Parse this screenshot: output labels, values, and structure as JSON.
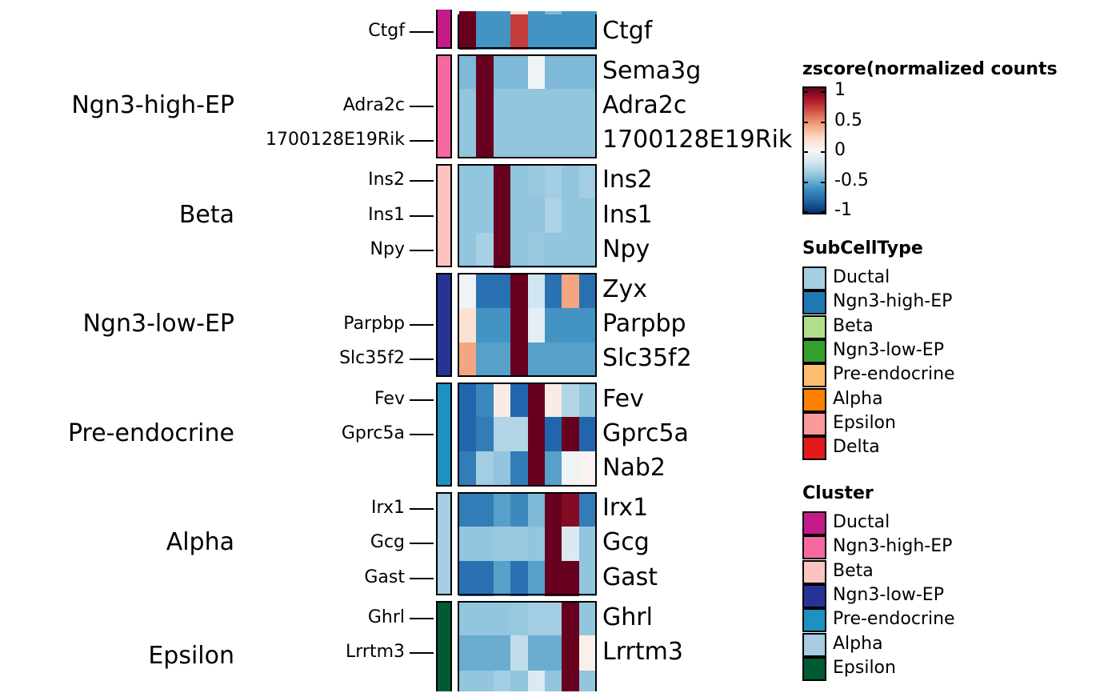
{
  "chart_data": {
    "type": "heatmap",
    "title": "",
    "columns_count": 8,
    "colorscale": {
      "title": "zscore(normalized counts",
      "range": [
        -1,
        1
      ],
      "ticks": [
        "1",
        "0.5",
        "0",
        "-0.5",
        "-1"
      ],
      "tick_values": [
        1,
        0.5,
        0,
        -0.5,
        -1
      ],
      "palette": "RdBu (reversed)",
      "stops": [
        "#053061",
        "#2166ac",
        "#4393c3",
        "#92c5de",
        "#d1e5f0",
        "#f7f7f7",
        "#fddbc7",
        "#f4a582",
        "#d6604d",
        "#b2182b",
        "#67001f"
      ]
    },
    "row_groups": [
      {
        "name": "Ductal",
        "label": "",
        "cluster_color": "#C51B8A",
        "rows": [
          {
            "gene": "Ctgf",
            "left_label": "Ctgf",
            "values": [
              1,
              -0.6,
              -0.6,
              0.7,
              -0.6,
              -0.6,
              -0.6,
              -0.6
            ]
          }
        ]
      },
      {
        "name": "Ngn3-high-EP",
        "label": "Ngn3-high-EP",
        "cluster_color": "#F768A1",
        "rows": [
          {
            "gene": "Sema3g",
            "left_label": "",
            "values": [
              -0.45,
              1,
              -0.45,
              -0.45,
              -0.05,
              -0.45,
              -0.45,
              -0.45
            ]
          },
          {
            "gene": "Adra2c",
            "left_label": "Adra2c",
            "values": [
              -0.4,
              1,
              -0.4,
              -0.4,
              -0.4,
              -0.4,
              -0.4,
              -0.4
            ]
          },
          {
            "gene": "1700128E19Rik",
            "left_label": "1700128E19Rik",
            "values": [
              -0.4,
              1,
              -0.4,
              -0.4,
              -0.4,
              -0.4,
              -0.4,
              -0.4
            ]
          }
        ]
      },
      {
        "name": "Beta",
        "label": "Beta",
        "cluster_color": "#FBC4C1",
        "rows": [
          {
            "gene": "Ins2",
            "left_label": "Ins2",
            "values": [
              -0.4,
              -0.4,
              1,
              -0.4,
              -0.38,
              -0.35,
              -0.4,
              -0.35
            ]
          },
          {
            "gene": "Ins1",
            "left_label": "Ins1",
            "values": [
              -0.4,
              -0.4,
              1,
              -0.4,
              -0.4,
              -0.32,
              -0.4,
              -0.4
            ]
          },
          {
            "gene": "Npy",
            "left_label": "Npy",
            "values": [
              -0.4,
              -0.33,
              1,
              -0.4,
              -0.38,
              -0.4,
              -0.4,
              -0.4
            ]
          }
        ]
      },
      {
        "name": "Ngn3-low-EP",
        "label": "Ngn3-low-EP",
        "cluster_color": "#253494",
        "rows": [
          {
            "gene": "Zyx",
            "left_label": "",
            "values": [
              -0.05,
              -0.75,
              -0.75,
              1,
              -0.2,
              -0.75,
              0.4,
              -0.75
            ]
          },
          {
            "gene": "Parpbp",
            "left_label": "Parpbp",
            "values": [
              0.15,
              -0.6,
              -0.6,
              1,
              -0.1,
              -0.6,
              -0.6,
              -0.6
            ]
          },
          {
            "gene": "Slc35f2",
            "left_label": "Slc35f2",
            "values": [
              0.4,
              -0.55,
              -0.55,
              1,
              -0.55,
              -0.55,
              -0.55,
              -0.55
            ]
          }
        ]
      },
      {
        "name": "Pre-endocrine",
        "label": "Pre-endocrine",
        "cluster_color": "#1D91C0",
        "rows": [
          {
            "gene": "Fev",
            "left_label": "Fev",
            "values": [
              -0.8,
              -0.65,
              0.08,
              -0.8,
              1,
              0.08,
              -0.3,
              -0.4
            ]
          },
          {
            "gene": "Gprc5a",
            "left_label": "Gprc5a",
            "values": [
              -0.8,
              -0.7,
              -0.3,
              -0.3,
              1,
              -0.8,
              1,
              -0.8
            ]
          },
          {
            "gene": "Nab2",
            "left_label": "",
            "values": [
              -0.7,
              -0.35,
              -0.4,
              -0.7,
              1,
              -0.55,
              -0.05,
              0.03
            ]
          }
        ]
      },
      {
        "name": "Alpha",
        "label": "Alpha",
        "cluster_color": "#A6CBE3",
        "rows": [
          {
            "gene": "Irx1",
            "left_label": "Irx1",
            "values": [
              -0.7,
              -0.7,
              -0.55,
              -0.65,
              -0.45,
              1,
              0.92,
              -0.7
            ]
          },
          {
            "gene": "Gcg",
            "left_label": "Gcg",
            "values": [
              -0.4,
              -0.4,
              -0.38,
              -0.38,
              -0.4,
              1,
              -0.15,
              -0.4
            ]
          },
          {
            "gene": "Gast",
            "left_label": "Gast",
            "values": [
              -0.75,
              -0.75,
              -0.55,
              -0.75,
              -0.55,
              1,
              1,
              -0.4
            ]
          }
        ]
      },
      {
        "name": "Epsilon",
        "label": "Epsilon",
        "cluster_color": "#005A32",
        "rows": [
          {
            "gene": "Ghrl",
            "left_label": "Ghrl",
            "values": [
              -0.4,
              -0.4,
              -0.4,
              -0.38,
              -0.35,
              -0.35,
              1,
              -0.4
            ]
          },
          {
            "gene": "Lrrtm3",
            "left_label": "Lrrtm3",
            "values": [
              -0.5,
              -0.5,
              -0.5,
              -0.25,
              -0.5,
              -0.5,
              1,
              0.05
            ]
          }
        ]
      }
    ],
    "legends": [
      {
        "title": "SubCellType",
        "items": [
          {
            "label": "Ductal",
            "color": "#A6CEE3"
          },
          {
            "label": "Ngn3-high-EP",
            "color": "#1F78B4"
          },
          {
            "label": "Beta",
            "color": "#B2DF8A"
          },
          {
            "label": "Ngn3-low-EP",
            "color": "#33A02C"
          },
          {
            "label": "Pre-endocrine",
            "color": "#FDBF6F"
          },
          {
            "label": "Alpha",
            "color": "#FF7F00"
          },
          {
            "label": "Epsilon",
            "color": "#FB9A99"
          },
          {
            "label": "Delta",
            "color": "#E31A1C"
          }
        ]
      },
      {
        "title": "Cluster",
        "items": [
          {
            "label": "Ductal",
            "color": "#C51B8A"
          },
          {
            "label": "Ngn3-high-EP",
            "color": "#F768A1"
          },
          {
            "label": "Beta",
            "color": "#FBC4C1"
          },
          {
            "label": "Ngn3-low-EP",
            "color": "#253494"
          },
          {
            "label": "Pre-endocrine",
            "color": "#1D91C0"
          },
          {
            "label": "Alpha",
            "color": "#A6CBE3"
          },
          {
            "label": "Epsilon",
            "color": "#005A32"
          }
        ]
      }
    ],
    "clipped_top_row": {
      "values": [
        1,
        -0.6,
        -0.6,
        0.15,
        -0.6,
        -0.45,
        -0.6,
        -0.6
      ]
    },
    "clipped_bottom_row": {
      "values": [
        -0.4,
        -0.4,
        -0.35,
        -0.4,
        -0.15,
        -0.4,
        1,
        -0.4
      ]
    }
  }
}
